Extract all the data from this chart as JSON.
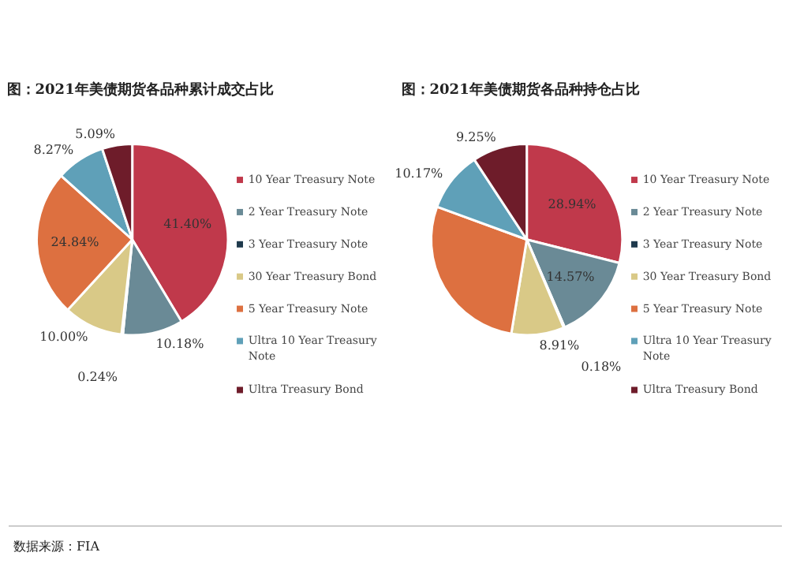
{
  "chart_data": [
    {
      "type": "pie",
      "title": "图：2021年美债期货各品种累计成交占比",
      "categories": [
        "10 Year Treasury Note",
        "2 Year Treasury Note",
        "3 Year Treasury Note",
        "30 Year Treasury Bond",
        "5 Year Treasury Note",
        "Ultra 10 Year Treasury Note",
        "Ultra Treasury Bond"
      ],
      "values": [
        41.4,
        10.18,
        0.24,
        10.0,
        24.84,
        8.27,
        5.09
      ],
      "colors": [
        "#c0394b",
        "#6a8a96",
        "#1f3a4d",
        "#d9c987",
        "#dd7040",
        "#5fa0b8",
        "#6e1c2a"
      ],
      "value_labels": [
        "41.40%",
        "10.18%",
        "0.24%",
        "10.00%",
        "24.84%",
        "8.27%",
        "5.09%"
      ],
      "legend": "right",
      "annotations": [
        "数据来源：FIA"
      ]
    },
    {
      "type": "pie",
      "title": "图：2021年美债期货各品种持仓占比",
      "categories": [
        "10 Year Treasury Note",
        "2 Year Treasury Note",
        "3 Year Treasury Note",
        "30 Year Treasury Bond",
        "5 Year Treasury Note",
        "Ultra 10 Year Treasury Note",
        "Ultra Treasury Bond"
      ],
      "values": [
        28.94,
        14.57,
        0.18,
        8.91,
        27.98,
        10.17,
        9.25
      ],
      "colors": [
        "#c0394b",
        "#6a8a96",
        "#1f3a4d",
        "#d9c987",
        "#dd7040",
        "#5fa0b8",
        "#6e1c2a"
      ],
      "value_labels": [
        "28.94%",
        "14.57%",
        "0.18%",
        "8.91%",
        null,
        "10.17%",
        "9.25%"
      ],
      "legend": "right"
    }
  ]
}
